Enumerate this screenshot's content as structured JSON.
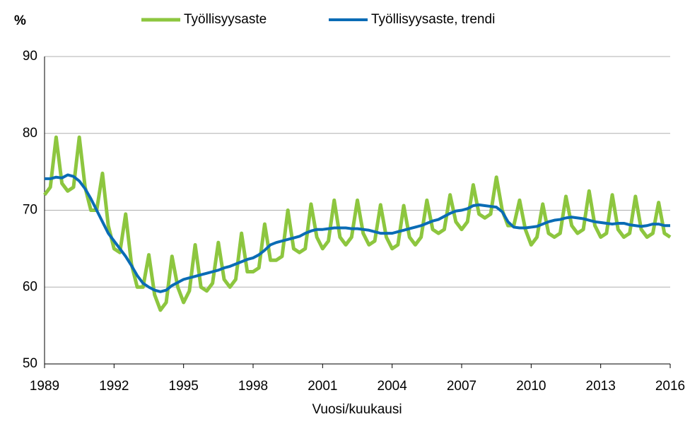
{
  "chart_data": {
    "type": "line",
    "y_label": "%",
    "x_label": "Vuosi/kuukausi",
    "x": [
      1989,
      1989.25,
      1989.5,
      1989.75,
      1990,
      1990.25,
      1990.5,
      1990.75,
      1991,
      1991.25,
      1991.5,
      1991.75,
      1992,
      1992.25,
      1992.5,
      1992.75,
      1993,
      1993.25,
      1993.5,
      1993.75,
      1994,
      1994.25,
      1994.5,
      1994.75,
      1995,
      1995.25,
      1995.5,
      1995.75,
      1996,
      1996.25,
      1996.5,
      1996.75,
      1997,
      1997.25,
      1997.5,
      1997.75,
      1998,
      1998.25,
      1998.5,
      1998.75,
      1999,
      1999.25,
      1999.5,
      1999.75,
      2000,
      2000.25,
      2000.5,
      2000.75,
      2001,
      2001.25,
      2001.5,
      2001.75,
      2002,
      2002.25,
      2002.5,
      2002.75,
      2003,
      2003.25,
      2003.5,
      2003.75,
      2004,
      2004.25,
      2004.5,
      2004.75,
      2005,
      2005.25,
      2005.5,
      2005.75,
      2006,
      2006.25,
      2006.5,
      2006.75,
      2007,
      2007.25,
      2007.5,
      2007.75,
      2008,
      2008.25,
      2008.5,
      2008.75,
      2009,
      2009.25,
      2009.5,
      2009.75,
      2010,
      2010.25,
      2010.5,
      2010.75,
      2011,
      2011.25,
      2011.5,
      2011.75,
      2012,
      2012.25,
      2012.5,
      2012.75,
      2013,
      2013.25,
      2013.5,
      2013.75,
      2014,
      2014.25,
      2014.5,
      2014.75,
      2015,
      2015.25,
      2015.5,
      2015.75,
      2016
    ],
    "series": [
      {
        "name": "Työllisyysaste",
        "color": "#8dc63f",
        "width": 5,
        "values": [
          72,
          73,
          79.5,
          73.5,
          72.5,
          73,
          79.5,
          73,
          70,
          70,
          74.8,
          68,
          65,
          64.5,
          69.5,
          63,
          60,
          60,
          64.2,
          59,
          57,
          58,
          64,
          60,
          58,
          59.5,
          65.5,
          60,
          59.5,
          60.5,
          65.8,
          61,
          60,
          61,
          67,
          62,
          62,
          62.5,
          68.2,
          63.5,
          63.5,
          64,
          70,
          65,
          64.5,
          65,
          70.8,
          66.5,
          65,
          66,
          71.3,
          66.5,
          65.5,
          66.5,
          71.3,
          67,
          65.5,
          66,
          70.7,
          66.5,
          65,
          65.5,
          70.6,
          66.5,
          65.5,
          66.5,
          71.3,
          67.5,
          67,
          67.5,
          72,
          68.5,
          67.5,
          68.5,
          73.3,
          69.5,
          69,
          69.5,
          74.3,
          70,
          68,
          68,
          71.3,
          67.5,
          65.5,
          66.5,
          70.8,
          67,
          66.5,
          67,
          71.8,
          68,
          67,
          67.5,
          72.5,
          68,
          66.5,
          67,
          72,
          67.5,
          66.5,
          67,
          71.8,
          67.5,
          66.5,
          67,
          71,
          67,
          66.5
        ]
      },
      {
        "name": "Työllisyysaste, trendi",
        "color": "#0a6cb5",
        "width": 4,
        "values": [
          74.1,
          74.1,
          74.3,
          74.2,
          74.6,
          74.4,
          73.8,
          72.8,
          71.5,
          70,
          68.5,
          67,
          66,
          65,
          64,
          62.8,
          61.5,
          60.5,
          60,
          59.6,
          59.4,
          59.6,
          60.2,
          60.6,
          61,
          61.2,
          61.4,
          61.6,
          61.8,
          62,
          62.2,
          62.5,
          62.7,
          63,
          63.3,
          63.6,
          63.8,
          64.2,
          64.8,
          65.5,
          65.8,
          66,
          66.2,
          66.4,
          66.6,
          67,
          67.3,
          67.5,
          67.5,
          67.6,
          67.7,
          67.7,
          67.7,
          67.6,
          67.6,
          67.5,
          67.4,
          67.2,
          67,
          67,
          67,
          67.2,
          67.4,
          67.6,
          67.8,
          68,
          68.3,
          68.6,
          68.8,
          69.2,
          69.6,
          69.9,
          70,
          70.2,
          70.6,
          70.7,
          70.6,
          70.5,
          70.4,
          69.8,
          68.5,
          67.8,
          67.7,
          67.7,
          67.8,
          67.9,
          68.2,
          68.5,
          68.7,
          68.8,
          69,
          69.1,
          69,
          68.9,
          68.7,
          68.5,
          68.4,
          68.3,
          68.2,
          68.3,
          68.3,
          68.1,
          68,
          67.9,
          68,
          68.2,
          68.2,
          68,
          68
        ]
      }
    ],
    "xlim": [
      1989,
      2016
    ],
    "xticks": [
      1989,
      1992,
      1995,
      1998,
      2001,
      2004,
      2007,
      2010,
      2013,
      2016
    ],
    "ylim": [
      50,
      90
    ],
    "yticks": [
      50,
      60,
      70,
      80,
      90
    ],
    "grid": true,
    "legend": "top"
  }
}
